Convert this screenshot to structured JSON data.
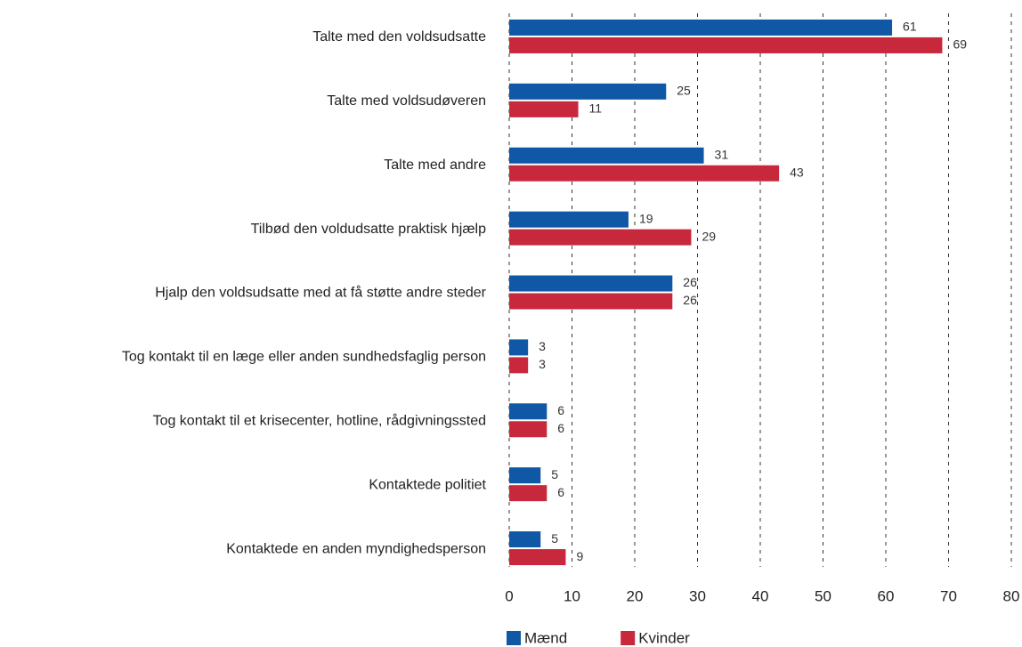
{
  "chart_data": {
    "type": "bar",
    "orientation": "horizontal",
    "categories": [
      "Talte med den voldsudsatte",
      "Talte med voldsudøveren",
      "Talte med andre",
      "Tilbød den voldudsatte praktisk hjælp",
      "Hjalp den voldsudsatte med at få støtte andre steder",
      "Tog kontakt til en læge eller anden sundhedsfaglig person",
      "Tog kontakt til et krisecenter, hotline, rådgivningssted",
      "Kontaktede politiet",
      "Kontaktede en anden myndighedsperson"
    ],
    "series": [
      {
        "name": "Mænd",
        "color": "#1058a6",
        "values": [
          61,
          25,
          31,
          19,
          26,
          3,
          6,
          5,
          5
        ]
      },
      {
        "name": "Kvinder",
        "color": "#c8283c",
        "values": [
          69,
          11,
          43,
          29,
          26,
          3,
          6,
          6,
          9
        ]
      }
    ],
    "xlim": [
      0,
      80
    ],
    "xticks": [
      0,
      10,
      20,
      30,
      40,
      50,
      60,
      70,
      80
    ],
    "grid": true,
    "legend": "bottom"
  }
}
